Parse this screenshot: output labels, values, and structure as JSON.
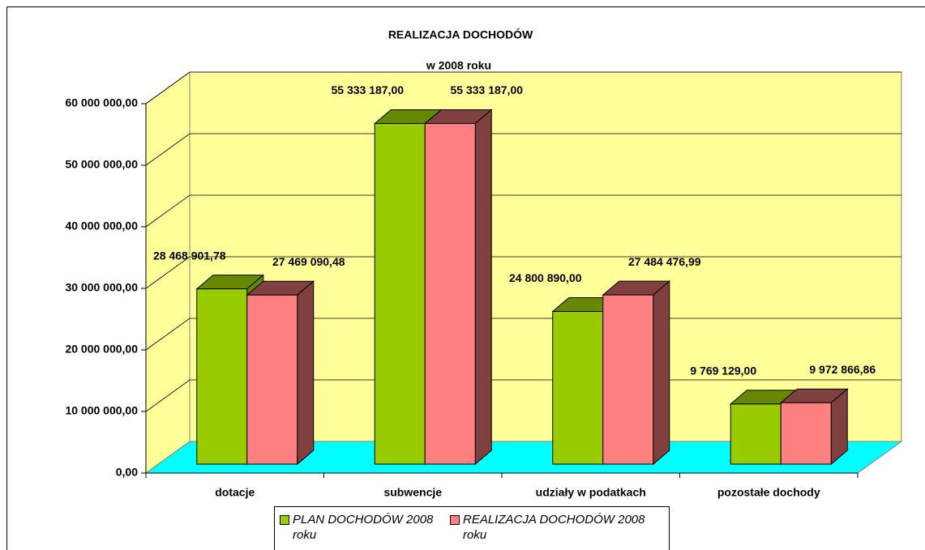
{
  "chart_data": {
    "type": "bar3d",
    "title": "REALIZACJA DOCHODÓW",
    "subtitle": "w 2008 roku",
    "categories": [
      "dotacje",
      "subwencje",
      "udziały w podatkach",
      "pozostałe dochody"
    ],
    "series": [
      {
        "name": "PLAN DOCHODÓW 2008 roku",
        "color": "#99cc00",
        "side_color": "#668800",
        "values": [
          28468901.78,
          55333187.0,
          24800890.0,
          9769129.0
        ],
        "value_labels": [
          "28 468 901,78",
          "55 333 187,00",
          "24 800 890,00",
          "9 769 129,00"
        ]
      },
      {
        "name": "REALIZACJA DOCHODÓW 2008 roku",
        "color": "#ff8080",
        "side_color": "#804040",
        "values": [
          27469090.48,
          55333187.0,
          27484476.99,
          9972866.86
        ],
        "value_labels": [
          "27 469 090,48",
          "55 333 187,00",
          "27 484 476,99",
          "9 972 866,86"
        ]
      }
    ],
    "ylim": [
      0,
      60000000
    ],
    "yticks": [
      {
        "value": 0,
        "label": "0,00"
      },
      {
        "value": 10000000,
        "label": "10 000 000,00"
      },
      {
        "value": 20000000,
        "label": "20 000 000,00"
      },
      {
        "value": 30000000,
        "label": "30 000 000,00"
      },
      {
        "value": 40000000,
        "label": "40 000 000,00"
      },
      {
        "value": 50000000,
        "label": "50 000 000,00"
      },
      {
        "value": 60000000,
        "label": "60 000 000,00"
      }
    ],
    "grid": true,
    "wall_color": "#ffff99",
    "floor_color": "#00ffff",
    "legend": "bottom"
  }
}
